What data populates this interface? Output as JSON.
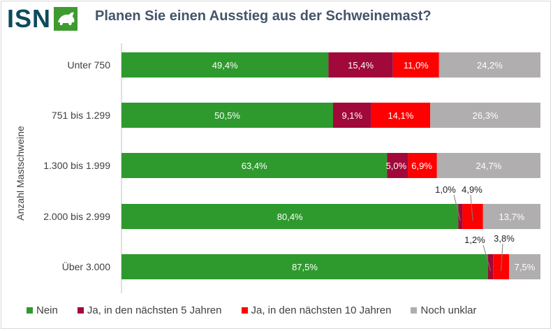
{
  "brand": {
    "logo_text": "ISN",
    "logo_icon": "pig-logo-icon"
  },
  "colors": {
    "Nein": "#2e9a2e",
    "Ja5": "#a0093a",
    "Ja10": "#ff0000",
    "unklar": "#b0aeae",
    "logo": "#0d4a5c",
    "logo_green": "#3f9b2f"
  },
  "chart_data": {
    "type": "bar",
    "orientation": "horizontal",
    "stacked": "percent",
    "title": "Planen Sie einen Ausstieg aus der Schweinemast?",
    "ylabel": "Anzahl Mastschweine",
    "xlabel": "",
    "xlim": [
      0,
      100
    ],
    "grid": false,
    "legend_position": "bottom",
    "categories": [
      "Unter 750",
      "751 bis 1.299",
      "1.300 bis 1.999",
      "2.000 bis 2.999",
      "Über 3.000"
    ],
    "series": [
      {
        "name": "Nein",
        "values": [
          49.4,
          50.5,
          63.4,
          80.4,
          87.5
        ],
        "labels": [
          "49,4%",
          "50,5%",
          "63,4%",
          "80,4%",
          "87,5%"
        ]
      },
      {
        "name": "Ja, in den nächsten 5 Jahren",
        "values": [
          15.4,
          9.1,
          5.0,
          1.0,
          1.2
        ],
        "labels": [
          "15,4%",
          "9,1%",
          "5,0%",
          "1,0%",
          "1,2%"
        ]
      },
      {
        "name": "Ja, in den nächsten 10 Jahren",
        "values": [
          11.0,
          14.1,
          6.9,
          4.9,
          3.8
        ],
        "labels": [
          "11,0%",
          "14,1%",
          "6,9%",
          "4,9%",
          "3,8%"
        ]
      },
      {
        "name": "Noch unklar",
        "values": [
          24.2,
          26.3,
          24.7,
          13.7,
          7.5
        ],
        "labels": [
          "24,2%",
          "26,3%",
          "24,7%",
          "13,7%",
          "7,5%"
        ]
      }
    ]
  }
}
